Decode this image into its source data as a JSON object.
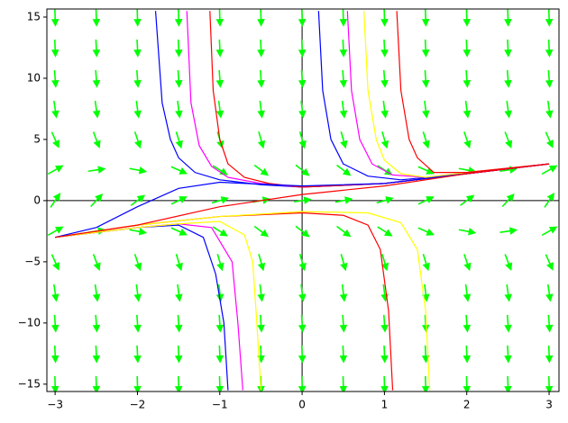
{
  "chart_data": {
    "type": "slope_field",
    "xlim": [
      -3.1,
      3.12
    ],
    "ylim": [
      -15.6,
      15.66
    ],
    "xticks": [
      {
        "value": -3,
        "label": "−3"
      },
      {
        "value": -2,
        "label": "−2"
      },
      {
        "value": -1,
        "label": "−1"
      },
      0,
      1,
      2,
      3
    ],
    "yticks": [
      {
        "value": -15,
        "label": "−15"
      },
      {
        "value": -10,
        "label": "−10"
      },
      {
        "value": -5,
        "label": "−5"
      },
      0,
      5,
      10,
      15
    ],
    "field": {
      "color": "#00ff00",
      "x": [
        -3,
        -2.5,
        -2,
        -1.5,
        -1,
        -0.5,
        0,
        0.5,
        1,
        1.5,
        2,
        2.5,
        3
      ],
      "y": [
        -15,
        -12.5,
        -10,
        -7.5,
        -5,
        -2.5,
        0,
        2.5,
        5,
        7.5,
        10,
        12.5,
        15
      ],
      "slopes": [
        [
          -215,
          -217.75,
          -220,
          -221.75,
          -223,
          -223.75,
          -224,
          -223.75,
          -223,
          -221.75,
          -220,
          -217.75,
          -215
        ],
        [
          -146.25,
          -149,
          -151.25,
          -153,
          -154.25,
          -155,
          -155.25,
          -155,
          -154.25,
          -153,
          -151.25,
          -149,
          -146.25
        ],
        [
          -90,
          -92.75,
          -95,
          -96.75,
          -98,
          -98.75,
          -99,
          -98.75,
          -98,
          -96.75,
          -95,
          -92.75,
          -90
        ],
        [
          -46.25,
          -49,
          -51.25,
          -53,
          -54.25,
          -55,
          -55.25,
          -55,
          -54.25,
          -53,
          -51.25,
          -49,
          -46.25
        ],
        [
          -15,
          -17.75,
          -20,
          -21.75,
          -23,
          -23.75,
          -24,
          -23.75,
          -23,
          -21.75,
          -20,
          -17.75,
          -15
        ],
        [
          3.75,
          1,
          -1.25,
          -3,
          -4.25,
          -5,
          -5.25,
          -5,
          -4.25,
          -3,
          -1.25,
          1,
          3.75
        ],
        [
          10,
          7.25,
          5,
          3.25,
          2,
          1.25,
          1,
          1.25,
          2,
          3.25,
          5,
          7.25,
          10
        ],
        [
          3.75,
          1,
          -1.25,
          -3,
          -4.25,
          -5,
          -5.25,
          -5,
          -4.25,
          -3,
          -1.25,
          1,
          3.75
        ],
        [
          -15,
          -17.75,
          -20,
          -21.75,
          -23,
          -23.75,
          -24,
          -23.75,
          -23,
          -21.75,
          -20,
          -17.75,
          -15
        ],
        [
          -46.25,
          -49,
          -51.25,
          -53,
          -54.25,
          -55,
          -55.25,
          -55,
          -54.25,
          -53,
          -51.25,
          -49,
          -46.25
        ],
        [
          -90,
          -92.75,
          -95,
          -96.75,
          -98,
          -98.75,
          -99,
          -98.75,
          -98,
          -96.75,
          -95,
          -92.75,
          -90
        ],
        [
          -146.25,
          -149,
          -151.25,
          -153,
          -154.25,
          -155,
          -155.25,
          -155,
          -154.25,
          -153,
          -151.25,
          -149,
          -146.25
        ],
        [
          -215,
          -217.75,
          -220,
          -221.75,
          -223,
          -223.75,
          -224,
          -223.75,
          -223,
          -221.75,
          -220,
          -217.75,
          -215
        ]
      ]
    },
    "series": [
      {
        "color": "#0000ff",
        "x": [
          -1.78,
          -1.7,
          -1.6,
          -1.5,
          -1.3,
          -1,
          -0.5,
          0,
          1,
          2,
          3
        ],
        "y": [
          15.5,
          8,
          5,
          3.5,
          2.3,
          1.7,
          1.3,
          1.1,
          1.4,
          2.2,
          3
        ]
      },
      {
        "color": "#ff00ff",
        "x": [
          -1.4,
          -1.35,
          -1.25,
          -1.1,
          -0.9,
          -0.5,
          0,
          1,
          2,
          3
        ],
        "y": [
          15.5,
          8,
          4.5,
          2.8,
          1.9,
          1.4,
          1.1,
          1.4,
          2.2,
          3
        ]
      },
      {
        "color": "#ff0000",
        "x": [
          -1.12,
          -1.08,
          -1.0,
          -0.9,
          -0.7,
          -0.4,
          0,
          1,
          2,
          3
        ],
        "y": [
          15.5,
          9,
          5,
          3,
          1.9,
          1.4,
          1.1,
          1.4,
          2.2,
          3
        ]
      },
      {
        "color": "#0000ff",
        "x": [
          0.2,
          0.25,
          0.35,
          0.5,
          0.8,
          1.2,
          2,
          3
        ],
        "y": [
          15.5,
          9,
          5,
          3,
          2,
          1.7,
          2.2,
          3
        ]
      },
      {
        "color": "#ff00ff",
        "x": [
          0.55,
          0.6,
          0.7,
          0.85,
          1.1,
          1.5,
          2,
          3
        ],
        "y": [
          15.5,
          9,
          5,
          3,
          2.1,
          1.9,
          2.3,
          3
        ]
      },
      {
        "color": "#ffff00",
        "x": [
          0.75,
          0.8,
          0.9,
          1.0,
          1.2,
          1.5,
          2,
          3
        ],
        "y": [
          15.5,
          9,
          5,
          3.3,
          2.2,
          1.9,
          2.3,
          3
        ]
      },
      {
        "color": "#ff0000",
        "x": [
          1.15,
          1.2,
          1.3,
          1.4,
          1.6,
          2,
          3
        ],
        "y": [
          15.5,
          9,
          5,
          3.5,
          2.3,
          2.3,
          3
        ]
      },
      {
        "color": "#0000ff",
        "x": [
          -3,
          -2.5,
          -2,
          -1.5,
          -1.2,
          -1.05,
          -0.95,
          -0.9
        ],
        "y": [
          -3,
          -2.6,
          -2.2,
          -2,
          -3,
          -6,
          -10,
          -15.5
        ]
      },
      {
        "color": "#ff00ff",
        "x": [
          -3,
          -2,
          -1.5,
          -1.1,
          -0.85,
          -0.78,
          -0.72
        ],
        "y": [
          -3,
          -2.2,
          -1.9,
          -2.2,
          -5,
          -10,
          -15.5
        ]
      },
      {
        "color": "#ffff00",
        "x": [
          -3,
          -2,
          -1.5,
          -1,
          -0.7,
          -0.6,
          -0.55,
          -0.5
        ],
        "y": [
          -3,
          -2.2,
          -1.9,
          -1.7,
          -2.8,
          -5,
          -10,
          -15.5
        ]
      },
      {
        "color": "#ff0000",
        "x": [
          -3,
          -2,
          -1,
          0,
          0.5,
          0.8,
          0.95,
          1.05,
          1.1
        ],
        "y": [
          -3,
          -2,
          -1.3,
          -1,
          -1.2,
          -2,
          -4,
          -9,
          -15.5
        ]
      },
      {
        "color": "#ffff00",
        "x": [
          -3,
          -2,
          -1,
          0,
          0.8,
          1.2,
          1.4,
          1.5,
          1.55
        ],
        "y": [
          -3,
          -2,
          -1.3,
          -0.9,
          -1,
          -1.8,
          -4,
          -9,
          -15.5
        ]
      },
      {
        "color": "#0000ff",
        "x": [
          -3,
          -2.5,
          -2,
          -1.5,
          -1,
          0,
          1,
          2,
          3
        ],
        "y": [
          -3,
          -2.2,
          -0.5,
          1,
          1.5,
          1.2,
          1.4,
          2.2,
          3
        ]
      },
      {
        "color": "#ff0000",
        "x": [
          -3,
          -2,
          -1,
          0,
          1,
          2,
          3
        ],
        "y": [
          -3,
          -2,
          -0.5,
          0.5,
          1.2,
          2.2,
          3
        ]
      }
    ]
  }
}
